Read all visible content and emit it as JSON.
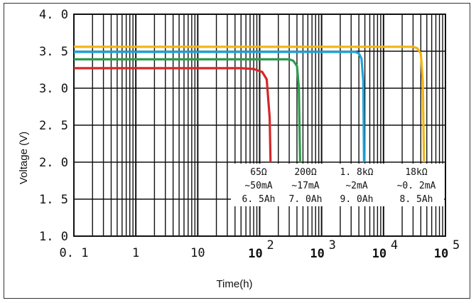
{
  "chart_data": {
    "type": "line",
    "title": "",
    "xlabel": "Time(h)",
    "ylabel": "Voltage (V)",
    "xscale": "log",
    "xlim": [
      0.1,
      100000
    ],
    "ylim": [
      1.0,
      4.0
    ],
    "grid": true,
    "xticks": [
      {
        "value": 0.1,
        "label": "0. 1"
      },
      {
        "value": 1,
        "label": "1"
      },
      {
        "value": 10,
        "label": "10"
      },
      {
        "value": 100,
        "label": "10",
        "exp": "2"
      },
      {
        "value": 1000,
        "label": "10",
        "exp": "3"
      },
      {
        "value": 10000,
        "label": "10",
        "exp": "4"
      },
      {
        "value": 100000,
        "label": "10",
        "exp": "5"
      }
    ],
    "yticks": [
      {
        "value": 4.0,
        "label": "4. 0"
      },
      {
        "value": 3.5,
        "label": "3. 5"
      },
      {
        "value": 3.0,
        "label": "3. 0"
      },
      {
        "value": 2.5,
        "label": "2. 5"
      },
      {
        "value": 2.0,
        "label": "2. 0"
      },
      {
        "value": 1.5,
        "label": "1. 5"
      },
      {
        "value": 1.0,
        "label": "1. 0"
      }
    ],
    "series": [
      {
        "name": "65Ω",
        "color": "#d62728",
        "x": [
          0.1,
          50,
          80,
          110,
          130,
          145,
          150
        ],
        "y": [
          3.27,
          3.27,
          3.26,
          3.22,
          3.12,
          2.6,
          2.0
        ],
        "load": "65Ω",
        "current": "~50mA",
        "capacity": "6. 5Ah"
      },
      {
        "name": "200Ω",
        "color": "#2a9d4b",
        "x": [
          0.1,
          300,
          350,
          400,
          430,
          450
        ],
        "y": [
          3.39,
          3.39,
          3.37,
          3.3,
          3.0,
          2.0
        ],
        "load": "200Ω",
        "current": "~17mA",
        "capacity": "7. 0Ah"
      },
      {
        "name": "1.8kΩ",
        "color": "#1fa3d8",
        "x": [
          0.1,
          3500,
          4000,
          4400,
          4700,
          4850
        ],
        "y": [
          3.49,
          3.49,
          3.47,
          3.4,
          3.1,
          2.0
        ],
        "load": "1. 8kΩ",
        "current": "~2mA",
        "capacity": "9. 0Ah"
      },
      {
        "name": "18kΩ",
        "color": "#f2b411",
        "x": [
          0.1,
          30000,
          35000,
          40000,
          43000,
          45000
        ],
        "y": [
          3.56,
          3.56,
          3.54,
          3.47,
          3.1,
          2.0
        ],
        "load": "18kΩ",
        "current": "~0. 2mA",
        "capacity": "8. 5Ah"
      }
    ]
  }
}
